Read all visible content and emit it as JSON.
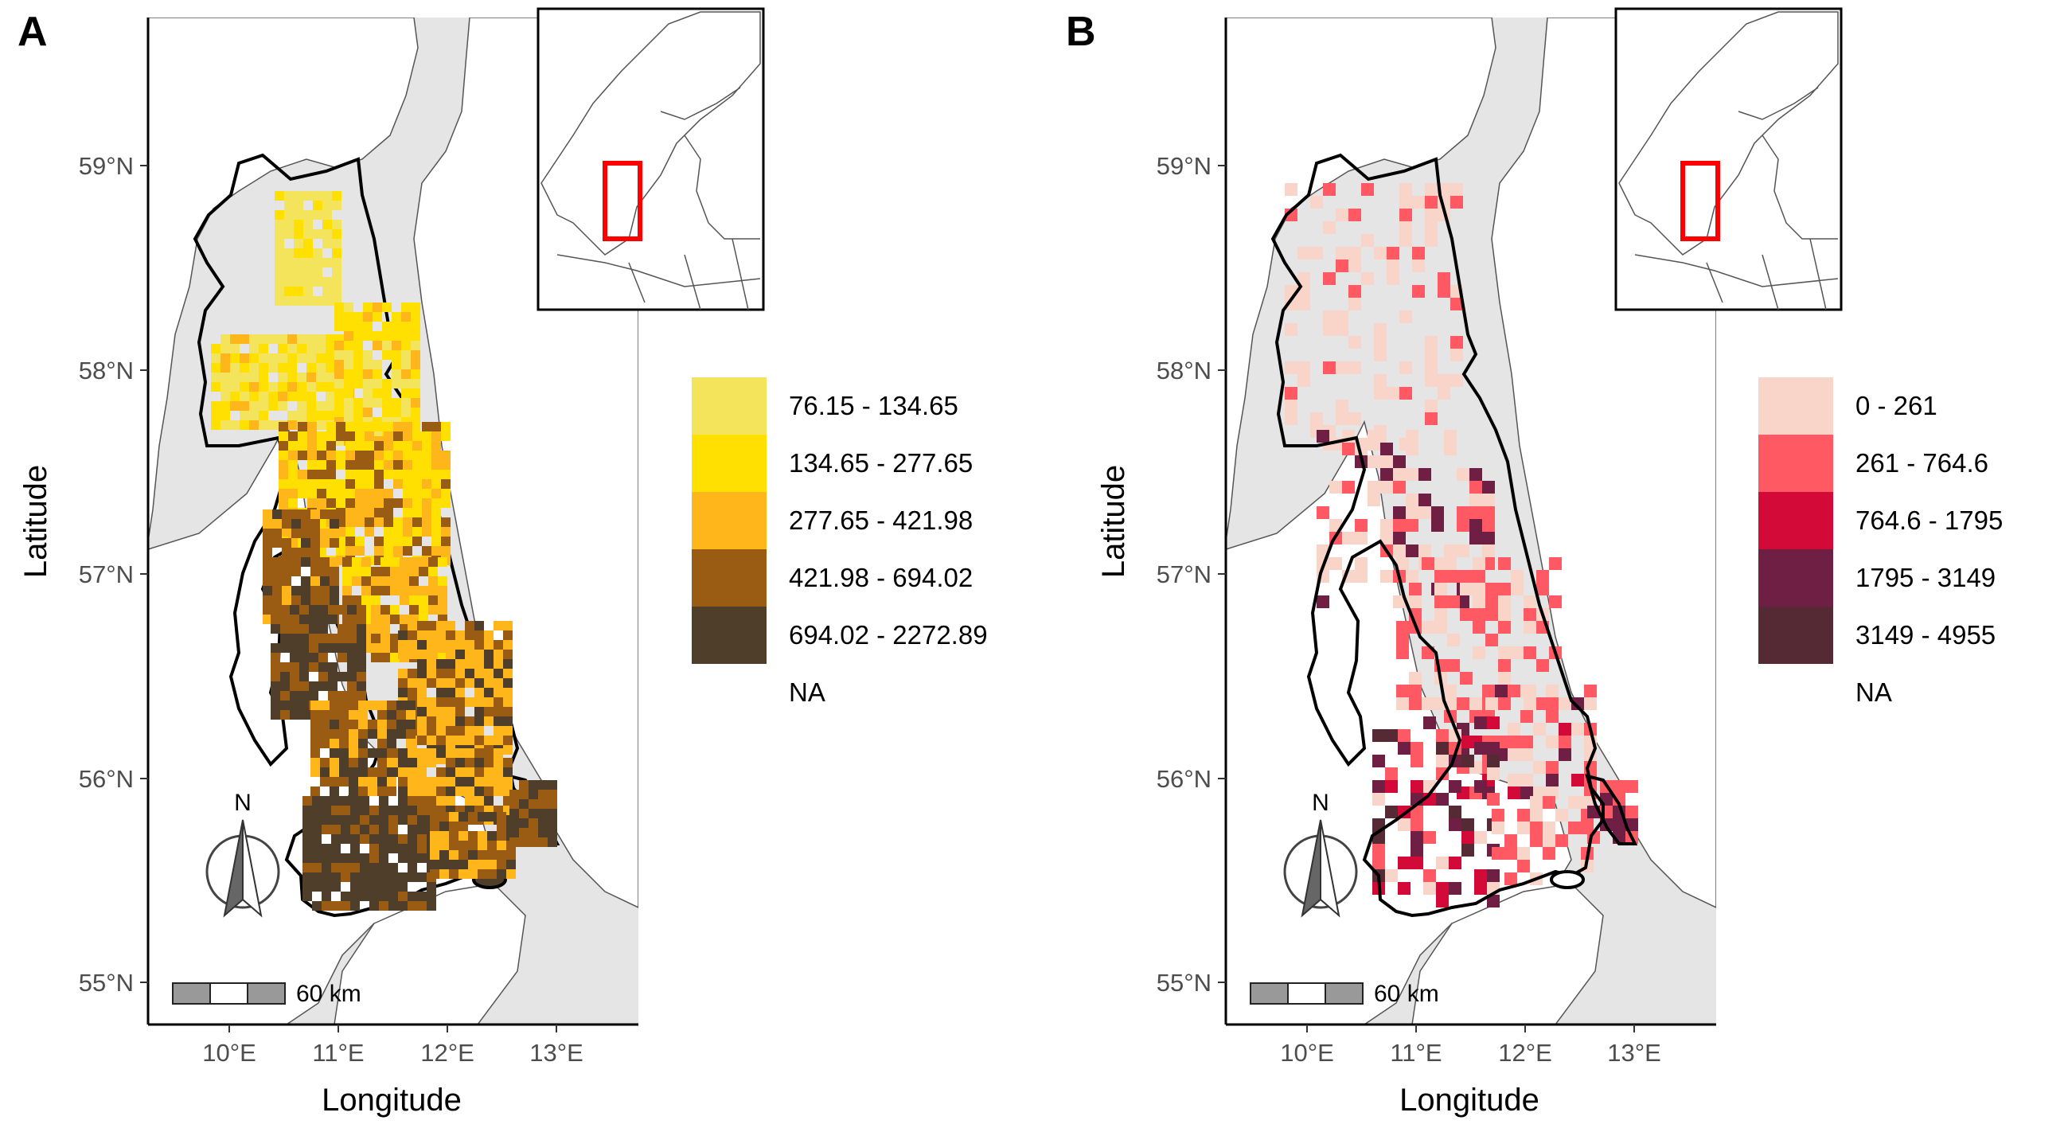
{
  "panels": [
    {
      "letter": "A",
      "lat_ticks": [
        "59°N",
        "58°N",
        "57°N",
        "56°N",
        "55°N"
      ],
      "lon_ticks": [
        "10°E",
        "11°E",
        "12°E",
        "13°E"
      ],
      "xlabel": "Longitude",
      "ylabel": "Latitude",
      "north_label": "N",
      "scale_label": "60 km",
      "legend": [
        {
          "label": "76.15 - 134.65",
          "color": "#f3e45c"
        },
        {
          "label": "134.65 - 277.65",
          "color": "#ffe000"
        },
        {
          "label": "277.65 - 421.98",
          "color": "#ffb61a"
        },
        {
          "label": "421.98 - 694.02",
          "color": "#9a5c12"
        },
        {
          "label": "694.02 - 2272.89",
          "color": "#4f3f2a"
        },
        {
          "label": "NA",
          "color": "#ffffff"
        }
      ]
    },
    {
      "letter": "B",
      "lat_ticks": [
        "59°N",
        "58°N",
        "57°N",
        "56°N",
        "55°N"
      ],
      "lon_ticks": [
        "10°E",
        "11°E",
        "12°E",
        "13°E"
      ],
      "xlabel": "Longitude",
      "ylabel": "Latitude",
      "north_label": "N",
      "scale_label": "60 km",
      "legend": [
        {
          "label": "0 - 261",
          "color": "#f9d4c8"
        },
        {
          "label": "261 - 764.6",
          "color": "#ff5a64"
        },
        {
          "label": "764.6 - 1795",
          "color": "#d30a37"
        },
        {
          "label": "1795 - 3149",
          "color": "#6e1f43"
        },
        {
          "label": "3149 - 4955",
          "color": "#552a35"
        },
        {
          "label": "NA",
          "color": "#ffffff"
        }
      ]
    }
  ],
  "colors": {
    "land": "#e5e5e5",
    "water": "#ffffff",
    "outline": "#000000",
    "inset_box": "#ff0000"
  }
}
